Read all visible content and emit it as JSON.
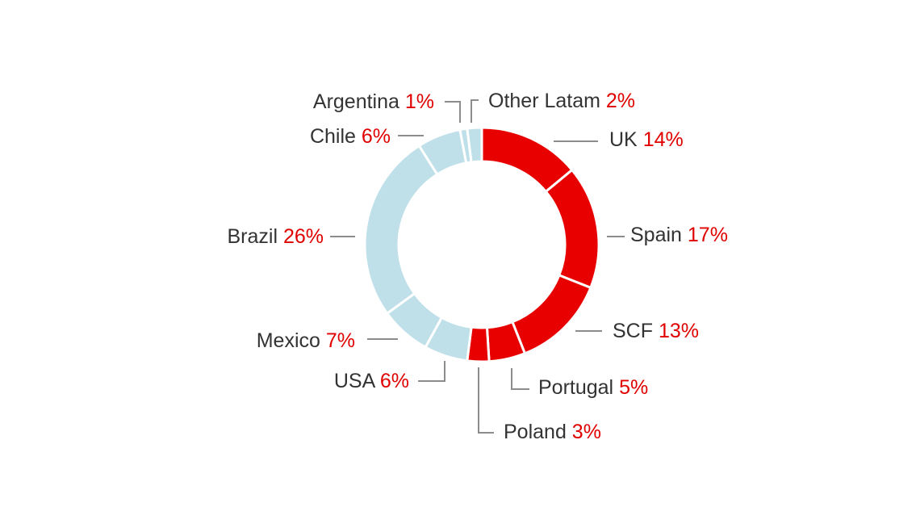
{
  "chart_data": {
    "type": "pie",
    "variant": "donut",
    "start": "top, clockwise",
    "slices": [
      {
        "name": "UK",
        "label": "14%",
        "value": 14,
        "color": "#e80000"
      },
      {
        "name": "Spain",
        "label": "17%",
        "value": 17,
        "color": "#e80000"
      },
      {
        "name": "SCF",
        "label": "13%",
        "value": 13,
        "color": "#e80000"
      },
      {
        "name": "Portugal",
        "label": "5%",
        "value": 5,
        "color": "#e80000"
      },
      {
        "name": "Poland",
        "label": "3%",
        "value": 3,
        "color": "#e80000"
      },
      {
        "name": "USA",
        "label": "6%",
        "value": 6,
        "color": "#bfe0e8"
      },
      {
        "name": "Mexico",
        "label": "7%",
        "value": 7,
        "color": "#bfe0e8"
      },
      {
        "name": "Brazil",
        "label": "26%",
        "value": 26,
        "color": "#bfe0e8"
      },
      {
        "name": "Chile",
        "label": "6%",
        "value": 6,
        "color": "#bfe0e8"
      },
      {
        "name": "Argentina",
        "label": "1%",
        "value": 1,
        "color": "#bfe0e8"
      },
      {
        "name": "Other Latam",
        "label": "2%",
        "value": 2,
        "color": "#bfe0e8"
      }
    ],
    "colors": {
      "name_text": "#333333",
      "percent_text": "#e00000",
      "leader_line": "#8c8c8c"
    }
  }
}
